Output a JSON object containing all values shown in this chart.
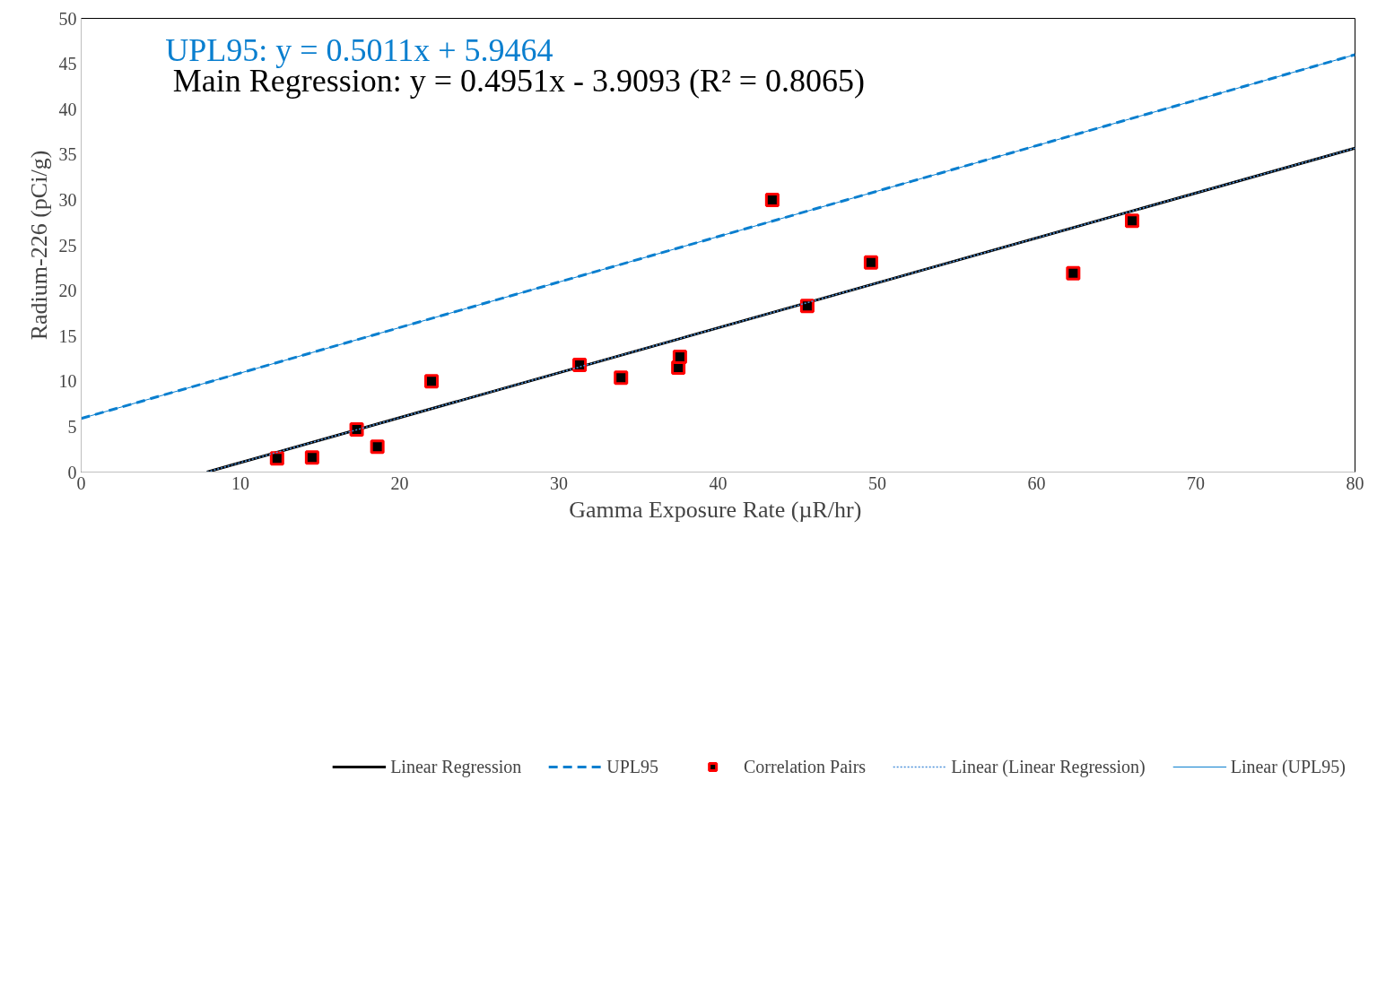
{
  "chart_data": {
    "type": "scatter",
    "xlabel": "Gamma  Exposure Rate (µR/hr)",
    "ylabel": "Radium-226 (pCi/g)",
    "annotations": [
      "UPL95: y = 0.5011x + 5.9464",
      "Main Regression: y = 0.4951x - 3.9093 (R² = 0.8065)"
    ],
    "xlim": [
      0,
      80
    ],
    "xticks": [
      0,
      10,
      20,
      30,
      40,
      50,
      60,
      70,
      80
    ],
    "ylim": [
      0,
      50
    ],
    "yticks": [
      0,
      5,
      10,
      15,
      20,
      25,
      30,
      35,
      40,
      45,
      50
    ],
    "grid": false,
    "legend": "bottom",
    "series": [
      {
        "name": "Linear Regression",
        "type": "line",
        "line_style": "solid",
        "color": "#000000",
        "x": [
          7.9,
          80
        ],
        "values": [
          0,
          35.7
        ]
      },
      {
        "name": "UPL95",
        "type": "line",
        "line_style": "dashed",
        "color": "#0a7fcf",
        "x": [
          0,
          80
        ],
        "values": [
          5.9,
          46.0
        ]
      },
      {
        "name": "Correlation Pairs",
        "marker": "square",
        "color": "#ff0000",
        "x": [
          12.3,
          14.5,
          17.3,
          18.6,
          22.0,
          31.3,
          33.9,
          37.5,
          37.6,
          43.4,
          45.6,
          49.6,
          62.3,
          66.0
        ],
        "values": [
          1.5,
          1.6,
          4.7,
          2.8,
          10.0,
          11.8,
          10.4,
          11.5,
          12.7,
          30.0,
          18.3,
          23.1,
          21.9,
          27.7
        ]
      },
      {
        "name": "Linear (Linear Regression)",
        "type": "line",
        "line_style": "dotted",
        "color": "#4a90d9",
        "x": [
          7.9,
          80
        ],
        "values": [
          0,
          35.7
        ]
      },
      {
        "name": "Linear (UPL95)",
        "type": "line",
        "line_style": "solid",
        "color": "#0a7fcf",
        "x": [
          0,
          80
        ],
        "values": [
          5.9,
          46.0
        ]
      }
    ]
  }
}
